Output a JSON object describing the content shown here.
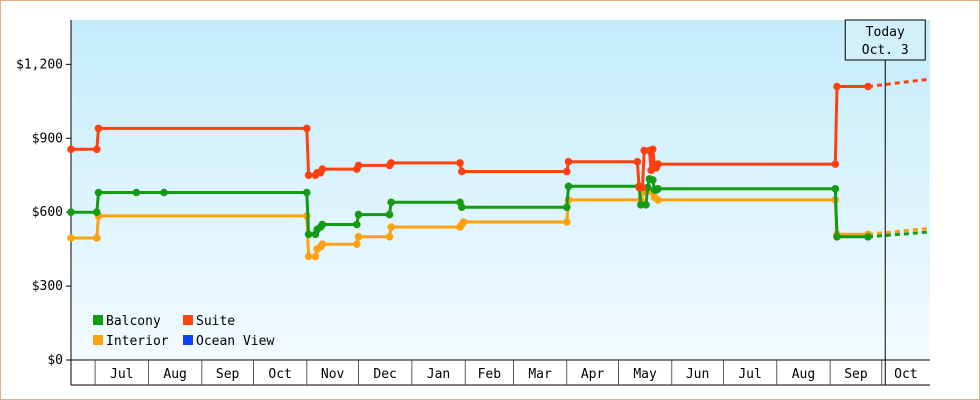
{
  "chart_data": {
    "type": "line",
    "step": true,
    "x_start": "2013-06-17",
    "x_end": "2014-10-29",
    "today": "2014-10-03",
    "today_label_line1": "Today",
    "today_label_line2": "Oct. 3",
    "ylim": [
      0,
      1380
    ],
    "y_ticks": [
      0,
      300,
      600,
      900,
      1200
    ],
    "y_tick_labels": [
      "$0",
      "$300",
      "$600",
      "$900",
      "$1,200"
    ],
    "x_ticks": [
      {
        "label": "Jul",
        "date": "2013-07-01"
      },
      {
        "label": "Aug",
        "date": "2013-08-01"
      },
      {
        "label": "Sep",
        "date": "2013-09-01"
      },
      {
        "label": "Oct",
        "date": "2013-10-01"
      },
      {
        "label": "Nov",
        "date": "2013-11-01"
      },
      {
        "label": "Dec",
        "date": "2013-12-01"
      },
      {
        "label": "Jan",
        "date": "2014-01-01"
      },
      {
        "label": "Feb",
        "date": "2014-02-01"
      },
      {
        "label": "Mar",
        "date": "2014-03-01"
      },
      {
        "label": "Apr",
        "date": "2014-04-01"
      },
      {
        "label": "May",
        "date": "2014-05-01"
      },
      {
        "label": "Jun",
        "date": "2014-06-01"
      },
      {
        "label": "Jul",
        "date": "2014-07-01"
      },
      {
        "label": "Aug",
        "date": "2014-08-01"
      },
      {
        "label": "Sep",
        "date": "2014-09-01"
      },
      {
        "label": "Oct",
        "date": "2014-10-01"
      }
    ],
    "legend_position": "bottom-left",
    "grid": false,
    "series": [
      {
        "name": "Balcony",
        "color": "#139b13",
        "points": [
          [
            "2013-06-17",
            600
          ],
          [
            "2013-07-02",
            600
          ],
          [
            "2013-07-03",
            680
          ],
          [
            "2013-07-25",
            680
          ],
          [
            "2013-08-10",
            680
          ],
          [
            "2013-11-01",
            680
          ],
          [
            "2013-11-02",
            510
          ],
          [
            "2013-11-06",
            510
          ],
          [
            "2013-11-07",
            530
          ],
          [
            "2013-11-09",
            540
          ],
          [
            "2013-11-10",
            550
          ],
          [
            "2013-11-30",
            550
          ],
          [
            "2013-12-01",
            590
          ],
          [
            "2013-12-19",
            590
          ],
          [
            "2013-12-20",
            640
          ],
          [
            "2014-01-29",
            640
          ],
          [
            "2014-01-30",
            620
          ],
          [
            "2014-04-01",
            620
          ],
          [
            "2014-04-02",
            705
          ],
          [
            "2014-05-13",
            705
          ],
          [
            "2014-05-14",
            630
          ],
          [
            "2014-05-17",
            630
          ],
          [
            "2014-05-18",
            700
          ],
          [
            "2014-05-19",
            735
          ],
          [
            "2014-05-21",
            730
          ],
          [
            "2014-05-22",
            690
          ],
          [
            "2014-05-23",
            690
          ],
          [
            "2014-05-24",
            695
          ],
          [
            "2014-09-04",
            695
          ],
          [
            "2014-09-05",
            500
          ],
          [
            "2014-09-23",
            500
          ]
        ],
        "projection": [
          [
            "2014-09-23",
            500
          ],
          [
            "2014-10-29",
            520
          ]
        ]
      },
      {
        "name": "Suite",
        "color": "#ff4010",
        "points": [
          [
            "2013-06-17",
            855
          ],
          [
            "2013-07-02",
            855
          ],
          [
            "2013-07-03",
            940
          ],
          [
            "2013-11-01",
            940
          ],
          [
            "2013-11-02",
            750
          ],
          [
            "2013-11-06",
            750
          ],
          [
            "2013-11-07",
            760
          ],
          [
            "2013-11-09",
            760
          ],
          [
            "2013-11-10",
            775
          ],
          [
            "2013-11-30",
            775
          ],
          [
            "2013-12-01",
            790
          ],
          [
            "2013-12-19",
            790
          ],
          [
            "2013-12-20",
            800
          ],
          [
            "2014-01-29",
            800
          ],
          [
            "2014-01-30",
            765
          ],
          [
            "2014-04-01",
            765
          ],
          [
            "2014-04-02",
            805
          ],
          [
            "2014-05-12",
            805
          ],
          [
            "2014-05-13",
            700
          ],
          [
            "2014-05-15",
            700
          ],
          [
            "2014-05-16",
            850
          ],
          [
            "2014-05-19",
            850
          ],
          [
            "2014-05-20",
            770
          ],
          [
            "2014-05-21",
            855
          ],
          [
            "2014-05-22",
            780
          ],
          [
            "2014-05-23",
            780
          ],
          [
            "2014-05-24",
            795
          ],
          [
            "2014-09-04",
            795
          ],
          [
            "2014-09-05",
            1110
          ],
          [
            "2014-09-23",
            1110
          ]
        ],
        "projection": [
          [
            "2014-09-23",
            1110
          ],
          [
            "2014-10-29",
            1140
          ]
        ]
      },
      {
        "name": "Interior",
        "color": "#ffa010",
        "points": [
          [
            "2013-06-17",
            495
          ],
          [
            "2013-07-02",
            495
          ],
          [
            "2013-07-03",
            585
          ],
          [
            "2013-11-01",
            585
          ],
          [
            "2013-11-02",
            420
          ],
          [
            "2013-11-06",
            420
          ],
          [
            "2013-11-07",
            450
          ],
          [
            "2013-11-09",
            460
          ],
          [
            "2013-11-10",
            470
          ],
          [
            "2013-11-30",
            470
          ],
          [
            "2013-12-01",
            500
          ],
          [
            "2013-12-19",
            500
          ],
          [
            "2013-12-20",
            540
          ],
          [
            "2014-01-29",
            540
          ],
          [
            "2014-01-30",
            550
          ],
          [
            "2014-01-31",
            560
          ],
          [
            "2014-04-01",
            560
          ],
          [
            "2014-04-02",
            650
          ],
          [
            "2014-05-14",
            650
          ],
          [
            "2014-05-15",
            680
          ],
          [
            "2014-05-21",
            680
          ],
          [
            "2014-05-22",
            660
          ],
          [
            "2014-05-24",
            650
          ],
          [
            "2014-09-04",
            650
          ],
          [
            "2014-09-05",
            510
          ],
          [
            "2014-09-23",
            510
          ]
        ],
        "projection": [
          [
            "2014-09-23",
            510
          ],
          [
            "2014-10-29",
            535
          ]
        ]
      },
      {
        "name": "Ocean View",
        "color": "#1040ff",
        "points": [],
        "projection": []
      }
    ]
  }
}
